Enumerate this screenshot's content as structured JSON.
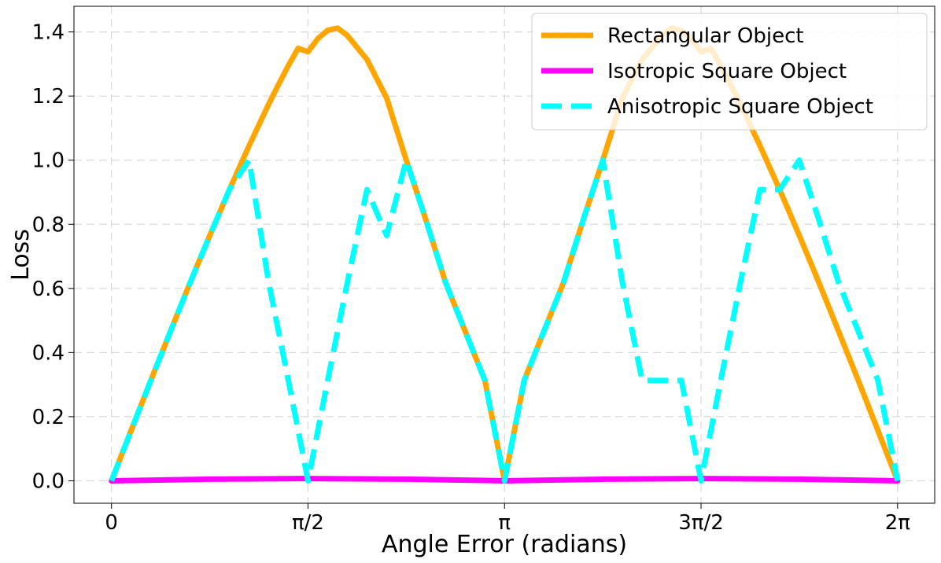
{
  "chart_data": {
    "type": "line",
    "xlabel": "Angle Error (radians)",
    "ylabel": "Loss",
    "xlim": [
      -0.3,
      6.58
    ],
    "ylim": [
      -0.07,
      1.48
    ],
    "grid": true,
    "legend_position": "top-right",
    "x_ticks": [
      {
        "value": 0,
        "label": "0"
      },
      {
        "value": 1.5708,
        "label": "π/2"
      },
      {
        "value": 3.1416,
        "label": "π"
      },
      {
        "value": 4.7124,
        "label": "3π/2"
      },
      {
        "value": 6.2832,
        "label": "2π"
      }
    ],
    "y_ticks": [
      {
        "value": 0.0,
        "label": "0.0"
      },
      {
        "value": 0.2,
        "label": "0.2"
      },
      {
        "value": 0.4,
        "label": "0.4"
      },
      {
        "value": 0.6,
        "label": "0.6"
      },
      {
        "value": 0.8,
        "label": "0.8"
      },
      {
        "value": 1.0,
        "label": "1.0"
      },
      {
        "value": 1.2,
        "label": "1.2"
      },
      {
        "value": 1.4,
        "label": "1.4"
      }
    ],
    "series": [
      {
        "name": "Rectangular Object",
        "color": "#FFA500",
        "style": "solid",
        "x": [
          0,
          0.1571,
          0.3142,
          0.4712,
          0.6283,
          0.7854,
          0.9425,
          1.0996,
          1.2566,
          1.3352,
          1.4137,
          1.4923,
          1.5708,
          1.6493,
          1.7279,
          1.8064,
          1.885,
          2.042,
          2.1991,
          2.3562,
          2.5133,
          2.6704,
          2.8274,
          2.9845,
          3.1416,
          3.2987,
          3.4558,
          3.6128,
          3.7699,
          3.927,
          4.0841,
          4.2412,
          4.3982,
          4.4768,
          4.5553,
          4.6339,
          4.7124,
          4.7909,
          4.8695,
          4.948,
          5.0265,
          5.1836,
          5.3407,
          5.4978,
          5.6549,
          5.8119,
          5.969,
          6.1261,
          6.2832
        ],
        "values": [
          0,
          0.157,
          0.313,
          0.466,
          0.618,
          0.765,
          0.908,
          1.045,
          1.175,
          1.236,
          1.295,
          1.349,
          1.338,
          1.379,
          1.405,
          1.412,
          1.389,
          1.314,
          1.194,
          1.0,
          0.813,
          0.618,
          0.466,
          0.313,
          0,
          0.313,
          0.466,
          0.618,
          0.813,
          1.0,
          1.194,
          1.314,
          1.389,
          1.412,
          1.405,
          1.379,
          1.338,
          1.349,
          1.295,
          1.236,
          1.175,
          1.045,
          0.908,
          0.765,
          0.618,
          0.466,
          0.313,
          0.157,
          0
        ]
      },
      {
        "name": "Isotropic Square Object",
        "color": "#FF00FF",
        "style": "solid",
        "x": [
          0,
          0.7854,
          1.5708,
          2.3562,
          3.1416,
          3.927,
          4.7124,
          5.4978,
          6.2832
        ],
        "values": [
          0,
          0.005,
          0.007,
          0.005,
          0,
          0.005,
          0.007,
          0.005,
          0
        ]
      },
      {
        "name": "Anisotropic Square Object",
        "color": "#00FFFF",
        "style": "dashed",
        "x": [
          0,
          0.1571,
          0.3142,
          0.4712,
          0.6283,
          0.7854,
          0.9425,
          1.0996,
          1.2566,
          1.4137,
          1.5708,
          1.7279,
          1.885,
          2.042,
          2.1991,
          2.3562,
          2.5133,
          2.6704,
          2.8274,
          2.9845,
          3.1416,
          3.2987,
          3.4558,
          3.6128,
          3.7699,
          3.927,
          4.0841,
          4.2412,
          4.3982,
          4.5553,
          4.7124,
          4.8695,
          5.0265,
          5.1836,
          5.3407,
          5.4978,
          5.6549,
          5.8119,
          5.969,
          6.1261,
          6.2832
        ],
        "values": [
          0,
          0.157,
          0.313,
          0.466,
          0.618,
          0.765,
          0.908,
          1.0,
          0.618,
          0.313,
          0,
          0.313,
          0.618,
          0.908,
          0.765,
          1.0,
          0.813,
          0.618,
          0.466,
          0.313,
          0,
          0.313,
          0.466,
          0.618,
          0.813,
          1.0,
          0.618,
          0.313,
          0.313,
          0.313,
          0,
          0.313,
          0.618,
          0.908,
          0.908,
          1.0,
          0.813,
          0.618,
          0.466,
          0.313,
          0
        ]
      }
    ]
  }
}
